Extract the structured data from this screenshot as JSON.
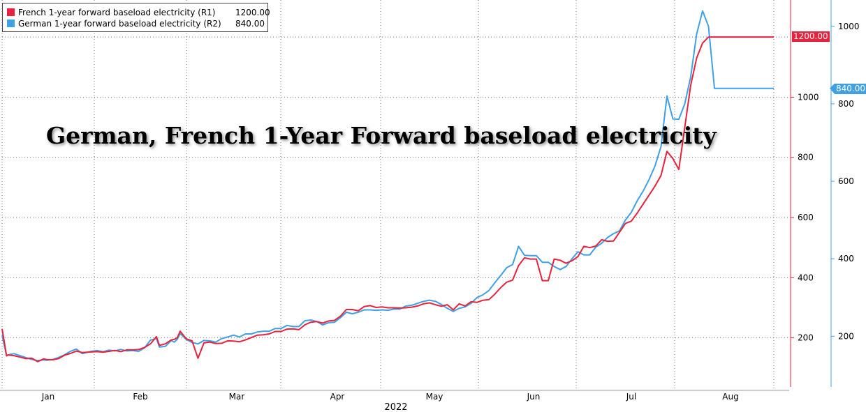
{
  "chart_data": {
    "type": "line",
    "title": "German, French 1-Year Forward baseload electricity",
    "x_axis": {
      "month_labels": [
        "Jan",
        "Feb",
        "Mar",
        "Apr",
        "May",
        "Jun",
        "Jul",
        "Aug"
      ],
      "year_label": "2022"
    },
    "y_axes": {
      "R1": {
        "ticks": [
          200,
          400,
          600,
          800,
          1000
        ],
        "range": [
          60,
          1300
        ],
        "color": "#e8223c"
      },
      "R2": {
        "ticks": [
          200,
          400,
          600,
          800,
          1000
        ],
        "range": [
          80,
          1050
        ],
        "color": "#3fa0e6"
      }
    },
    "series": [
      {
        "name": "French 1-year forward baseload electricity (R1)",
        "axis": "R1",
        "color": "#e8223c",
        "last_value": "1200.00",
        "x": [
          0,
          1.5,
          2,
          4,
          6,
          8,
          10,
          12,
          14,
          15,
          17,
          19,
          21,
          23,
          25,
          27,
          30,
          32,
          34,
          36,
          38,
          40,
          42,
          44,
          46,
          48,
          50,
          52,
          53,
          55,
          57,
          58,
          59,
          60,
          62,
          64,
          66,
          68,
          70,
          72,
          74,
          76,
          78,
          80,
          82,
          84,
          86,
          88,
          90,
          92,
          94,
          96,
          98,
          100,
          102,
          104,
          106,
          108,
          110,
          112,
          114,
          116,
          118,
          120,
          122,
          124,
          126,
          128,
          130,
          132,
          134,
          136,
          138,
          140,
          142,
          144,
          146,
          148,
          150,
          152,
          154,
          156,
          158,
          160,
          162,
          164,
          166,
          168,
          170,
          172,
          174,
          176,
          178,
          180,
          182,
          184,
          186,
          188,
          190,
          192,
          194,
          196,
          198,
          200,
          202,
          204,
          206,
          208,
          210,
          212,
          214,
          216,
          218,
          220,
          222,
          224,
          226,
          228,
          230,
          232,
          234,
          236,
          238,
          240,
          242,
          244,
          246,
          248,
          250,
          252,
          253,
          255,
          257,
          258,
          260
        ],
        "values": [
          230,
          140,
          143,
          141,
          136,
          131,
          132,
          121,
          130,
          128,
          127,
          131,
          142,
          148,
          156,
          151,
          153,
          154,
          152,
          155,
          158,
          154,
          160,
          160,
          161,
          168,
          180,
          204,
          175,
          180,
          193,
          195,
          200,
          222,
          197,
          190,
          132,
          183,
          186,
          181,
          182,
          190,
          189,
          187,
          193,
          201,
          209,
          210,
          213,
          221,
          221,
          229,
          230,
          227,
          243,
          252,
          254,
          249,
          256,
          258,
          272,
          294,
          294,
          290,
          304,
          307,
          301,
          303,
          300,
          300,
          299,
          300,
          302,
          306,
          313,
          316,
          310,
          305,
          310,
          293,
          313,
          306,
          320,
          318,
          325,
          327,
          345,
          367,
          385,
          392,
          440,
          466,
          462,
          462,
          390,
          390,
          462,
          458,
          448,
          456,
          470,
          504,
          500,
          505,
          526,
          521,
          522,
          551,
          580,
          588,
          615,
          645,
          675,
          705,
          740,
          820,
          796,
          760,
          900,
          1040,
          1130,
          1180,
          1200,
          1200,
          1200,
          1200,
          1200,
          1200,
          1200,
          1200,
          1200,
          1200,
          1200,
          1200,
          1200
        ]
      },
      {
        "name": "German 1-year forward baseload electricity (R2)",
        "axis": "R2",
        "color": "#3fa0e6",
        "last_value": "840.00",
        "x": [
          0,
          1.5,
          2,
          4,
          6,
          8,
          10,
          12,
          14,
          15,
          17,
          19,
          21,
          23,
          25,
          27,
          30,
          32,
          34,
          36,
          38,
          40,
          42,
          44,
          46,
          48,
          50,
          52,
          53,
          55,
          57,
          58,
          59,
          60,
          62,
          64,
          66,
          68,
          70,
          72,
          74,
          76,
          78,
          80,
          82,
          84,
          86,
          88,
          90,
          92,
          94,
          96,
          98,
          100,
          102,
          104,
          106,
          108,
          110,
          112,
          114,
          116,
          118,
          120,
          122,
          124,
          126,
          128,
          130,
          132,
          134,
          136,
          138,
          140,
          142,
          144,
          146,
          148,
          150,
          152,
          154,
          156,
          158,
          160,
          162,
          164,
          166,
          168,
          170,
          172,
          174,
          176,
          178,
          180,
          182,
          184,
          186,
          188,
          190,
          192,
          194,
          196,
          198,
          200,
          202,
          204,
          206,
          208,
          210,
          212,
          214,
          216,
          218,
          220,
          222,
          224,
          226,
          228,
          230,
          232,
          234,
          236,
          238,
          240,
          242,
          244,
          246,
          248,
          250,
          252,
          253,
          255,
          257,
          258,
          260
        ],
        "values": [
          202,
          150,
          152,
          155,
          150,
          145,
          140,
          137,
          139,
          138,
          140,
          145,
          152,
          161,
          167,
          155,
          161,
          163,
          160,
          164,
          162,
          166,
          162,
          163,
          161,
          170,
          190,
          194,
          172,
          174,
          189,
          185,
          192,
          207,
          192,
          184,
          180,
          189,
          188,
          185,
          194,
          198,
          203,
          198,
          206,
          206,
          211,
          213,
          213,
          220,
          220,
          228,
          225,
          225,
          240,
          242,
          238,
          229,
          235,
          236,
          248,
          262,
          258,
          262,
          268,
          268,
          267,
          268,
          267,
          270,
          270,
          278,
          280,
          285,
          290,
          293,
          290,
          282,
          272,
          264,
          272,
          276,
          285,
          300,
          307,
          318,
          338,
          357,
          377,
          385,
          432,
          409,
          408,
          408,
          391,
          391,
          380,
          372,
          380,
          400,
          418,
          410,
          410,
          430,
          440,
          455,
          465,
          472,
          500,
          520,
          550,
          575,
          605,
          640,
          690,
          820,
          761,
          760,
          800,
          870,
          980,
          1040,
          1000,
          840,
          840,
          840,
          840,
          840,
          840,
          840,
          840,
          840,
          840,
          840,
          840
        ]
      }
    ]
  }
}
